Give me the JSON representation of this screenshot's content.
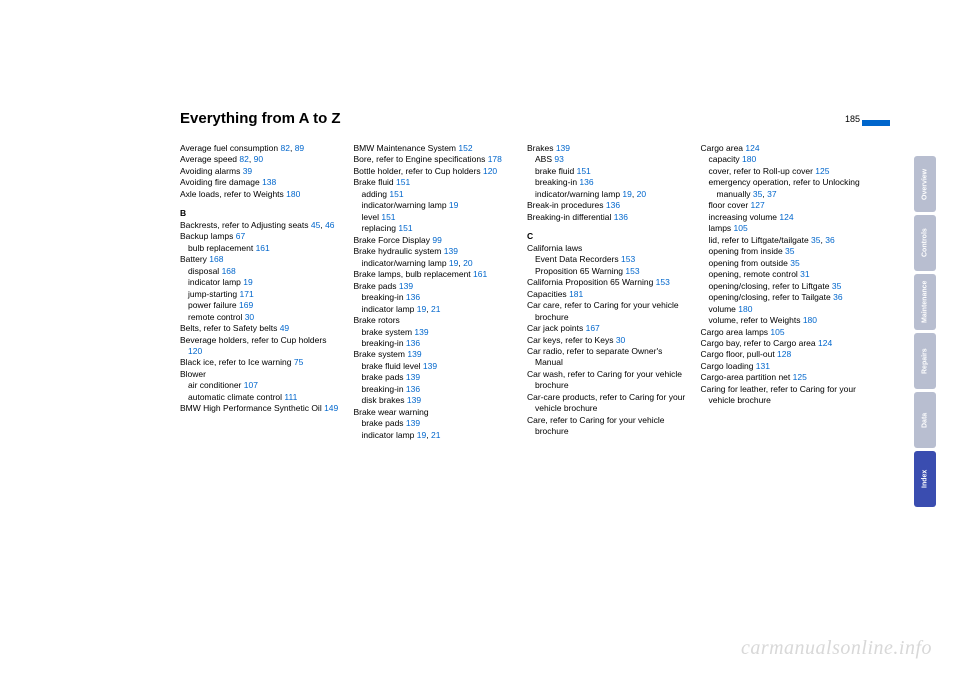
{
  "pageNumber": "185",
  "title": "Everything from A to Z",
  "watermark": "carmanualsonline.info",
  "tabs": [
    {
      "label": "Overview",
      "active": false
    },
    {
      "label": "Controls",
      "active": false
    },
    {
      "label": "Maintenance",
      "active": false
    },
    {
      "label": "Repairs",
      "active": false
    },
    {
      "label": "Data",
      "active": false
    },
    {
      "label": "Index",
      "active": true
    }
  ],
  "columns": [
    [
      {
        "t": "entry",
        "text": "Average fuel consumption",
        "refs": [
          "82",
          "89"
        ]
      },
      {
        "t": "entry",
        "text": "Average speed",
        "refs": [
          "82",
          "90"
        ]
      },
      {
        "t": "entry",
        "text": "Avoiding alarms",
        "refs": [
          "39"
        ]
      },
      {
        "t": "entry",
        "text": "Avoiding fire damage",
        "refs": [
          "138"
        ]
      },
      {
        "t": "entry",
        "text": "Axle loads, refer to Weights",
        "refs": [
          "180"
        ]
      },
      {
        "t": "section",
        "text": "B"
      },
      {
        "t": "entry",
        "text": "Backrests, refer to Adjusting seats",
        "refs": [
          "45",
          "46"
        ]
      },
      {
        "t": "entry",
        "text": "Backup lamps",
        "refs": [
          "67"
        ]
      },
      {
        "t": "sub",
        "text": "bulb replacement",
        "refs": [
          "161"
        ]
      },
      {
        "t": "entry",
        "text": "Battery",
        "refs": [
          "168"
        ]
      },
      {
        "t": "sub",
        "text": "disposal",
        "refs": [
          "168"
        ]
      },
      {
        "t": "sub",
        "text": "indicator lamp",
        "refs": [
          "19"
        ]
      },
      {
        "t": "sub",
        "text": "jump-starting",
        "refs": [
          "171"
        ]
      },
      {
        "t": "sub",
        "text": "power failure",
        "refs": [
          "169"
        ]
      },
      {
        "t": "sub",
        "text": "remote control",
        "refs": [
          "30"
        ]
      },
      {
        "t": "entry",
        "text": "Belts, refer to Safety belts",
        "refs": [
          "49"
        ]
      },
      {
        "t": "entry",
        "text": "Beverage holders, refer to Cup holders",
        "refs": [
          "120"
        ]
      },
      {
        "t": "entry",
        "text": "Black ice, refer to Ice warning",
        "refs": [
          "75"
        ]
      },
      {
        "t": "entry",
        "text": "Blower",
        "refs": []
      },
      {
        "t": "sub",
        "text": "air conditioner",
        "refs": [
          "107"
        ]
      },
      {
        "t": "sub",
        "text": "automatic climate control",
        "refs": [
          "111"
        ]
      },
      {
        "t": "entry",
        "text": "BMW High Performance Synthetic Oil",
        "refs": [
          "149"
        ]
      }
    ],
    [
      {
        "t": "entry",
        "text": "BMW Maintenance System",
        "refs": [
          "152"
        ]
      },
      {
        "t": "entry",
        "text": "Bore, refer to Engine specifications",
        "refs": [
          "178"
        ]
      },
      {
        "t": "entry",
        "text": "Bottle holder, refer to Cup holders",
        "refs": [
          "120"
        ]
      },
      {
        "t": "entry",
        "text": "Brake fluid",
        "refs": [
          "151"
        ]
      },
      {
        "t": "sub",
        "text": "adding",
        "refs": [
          "151"
        ]
      },
      {
        "t": "sub",
        "text": "indicator/warning lamp",
        "refs": [
          "19"
        ]
      },
      {
        "t": "sub",
        "text": "level",
        "refs": [
          "151"
        ]
      },
      {
        "t": "sub",
        "text": "replacing",
        "refs": [
          "151"
        ]
      },
      {
        "t": "entry",
        "text": "Brake Force Display",
        "refs": [
          "99"
        ]
      },
      {
        "t": "entry",
        "text": "Brake hydraulic system",
        "refs": [
          "139"
        ]
      },
      {
        "t": "sub",
        "text": "indicator/warning lamp",
        "refs": [
          "19",
          "20"
        ]
      },
      {
        "t": "entry",
        "text": "Brake lamps, bulb replacement",
        "refs": [
          "161"
        ]
      },
      {
        "t": "entry",
        "text": "Brake pads",
        "refs": [
          "139"
        ]
      },
      {
        "t": "sub",
        "text": "breaking-in",
        "refs": [
          "136"
        ]
      },
      {
        "t": "sub",
        "text": "indicator lamp",
        "refs": [
          "19",
          "21"
        ]
      },
      {
        "t": "entry",
        "text": "Brake rotors",
        "refs": []
      },
      {
        "t": "sub",
        "text": "brake system",
        "refs": [
          "139"
        ]
      },
      {
        "t": "sub",
        "text": "breaking-in",
        "refs": [
          "136"
        ]
      },
      {
        "t": "entry",
        "text": "Brake system",
        "refs": [
          "139"
        ]
      },
      {
        "t": "sub",
        "text": "brake fluid level",
        "refs": [
          "139"
        ]
      },
      {
        "t": "sub",
        "text": "brake pads",
        "refs": [
          "139"
        ]
      },
      {
        "t": "sub",
        "text": "breaking-in",
        "refs": [
          "136"
        ]
      },
      {
        "t": "sub",
        "text": "disk brakes",
        "refs": [
          "139"
        ]
      },
      {
        "t": "entry",
        "text": "Brake wear warning",
        "refs": []
      },
      {
        "t": "sub",
        "text": "brake pads",
        "refs": [
          "139"
        ]
      },
      {
        "t": "sub",
        "text": "indicator lamp",
        "refs": [
          "19",
          "21"
        ]
      }
    ],
    [
      {
        "t": "entry",
        "text": "Brakes",
        "refs": [
          "139"
        ]
      },
      {
        "t": "sub",
        "text": "ABS",
        "refs": [
          "93"
        ]
      },
      {
        "t": "sub",
        "text": "brake fluid",
        "refs": [
          "151"
        ]
      },
      {
        "t": "sub",
        "text": "breaking-in",
        "refs": [
          "136"
        ]
      },
      {
        "t": "sub",
        "text": "indicator/warning lamp",
        "refs": [
          "19",
          "20"
        ]
      },
      {
        "t": "entry",
        "text": "Break-in procedures",
        "refs": [
          "136"
        ]
      },
      {
        "t": "entry",
        "text": "Breaking-in differential",
        "refs": [
          "136"
        ]
      },
      {
        "t": "section",
        "text": "C"
      },
      {
        "t": "entry",
        "text": "California laws",
        "refs": []
      },
      {
        "t": "sub",
        "text": "Event Data Recorders",
        "refs": [
          "153"
        ]
      },
      {
        "t": "sub",
        "text": "Proposition 65 Warning",
        "refs": [
          "153"
        ]
      },
      {
        "t": "entry",
        "text": "California Proposition 65 Warning",
        "refs": [
          "153"
        ]
      },
      {
        "t": "entry",
        "text": "Capacities",
        "refs": [
          "181"
        ]
      },
      {
        "t": "entry",
        "text": "Car care, refer to Caring for your vehicle brochure",
        "refs": []
      },
      {
        "t": "entry",
        "text": "Car jack points",
        "refs": [
          "167"
        ]
      },
      {
        "t": "entry",
        "text": "Car keys, refer to Keys",
        "refs": [
          "30"
        ]
      },
      {
        "t": "entry",
        "text": "Car radio, refer to separate Owner's Manual",
        "refs": []
      },
      {
        "t": "entry",
        "text": "Car wash, refer to Caring for your vehicle brochure",
        "refs": []
      },
      {
        "t": "entry",
        "text": "Car-care products, refer to Caring for your vehicle brochure",
        "refs": []
      },
      {
        "t": "entry",
        "text": "Care, refer to Caring for your vehicle brochure",
        "refs": []
      }
    ],
    [
      {
        "t": "entry",
        "text": "Cargo area",
        "refs": [
          "124"
        ]
      },
      {
        "t": "sub",
        "text": "capacity",
        "refs": [
          "180"
        ]
      },
      {
        "t": "sub",
        "text": "cover, refer to Roll-up cover",
        "refs": [
          "125"
        ]
      },
      {
        "t": "sub",
        "text": "emergency operation, refer to Unlocking manually",
        "refs": [
          "35",
          "37"
        ]
      },
      {
        "t": "sub",
        "text": "floor cover",
        "refs": [
          "127"
        ]
      },
      {
        "t": "sub",
        "text": "increasing volume",
        "refs": [
          "124"
        ]
      },
      {
        "t": "sub",
        "text": "lamps",
        "refs": [
          "105"
        ]
      },
      {
        "t": "sub",
        "text": "lid, refer to Liftgate/tailgate",
        "refs": [
          "35",
          "36"
        ]
      },
      {
        "t": "sub",
        "text": "opening from inside",
        "refs": [
          "35"
        ]
      },
      {
        "t": "sub",
        "text": "opening from outside",
        "refs": [
          "35"
        ]
      },
      {
        "t": "sub",
        "text": "opening, remote control",
        "refs": [
          "31"
        ]
      },
      {
        "t": "sub",
        "text": "opening/closing, refer to Liftgate",
        "refs": [
          "35"
        ]
      },
      {
        "t": "sub",
        "text": "opening/closing, refer to Tailgate",
        "refs": [
          "36"
        ]
      },
      {
        "t": "sub",
        "text": "volume",
        "refs": [
          "180"
        ]
      },
      {
        "t": "sub",
        "text": "volume, refer to Weights",
        "refs": [
          "180"
        ]
      },
      {
        "t": "entry",
        "text": "Cargo area lamps",
        "refs": [
          "105"
        ]
      },
      {
        "t": "entry",
        "text": "Cargo bay, refer to Cargo area",
        "refs": [
          "124"
        ]
      },
      {
        "t": "entry",
        "text": "Cargo floor, pull-out",
        "refs": [
          "128"
        ]
      },
      {
        "t": "entry",
        "text": "Cargo loading",
        "refs": [
          "131"
        ]
      },
      {
        "t": "entry",
        "text": "Cargo-area partition net",
        "refs": [
          "125"
        ]
      },
      {
        "t": "entry",
        "text": "Caring for leather, refer to Caring for your vehicle brochure",
        "refs": []
      }
    ]
  ]
}
